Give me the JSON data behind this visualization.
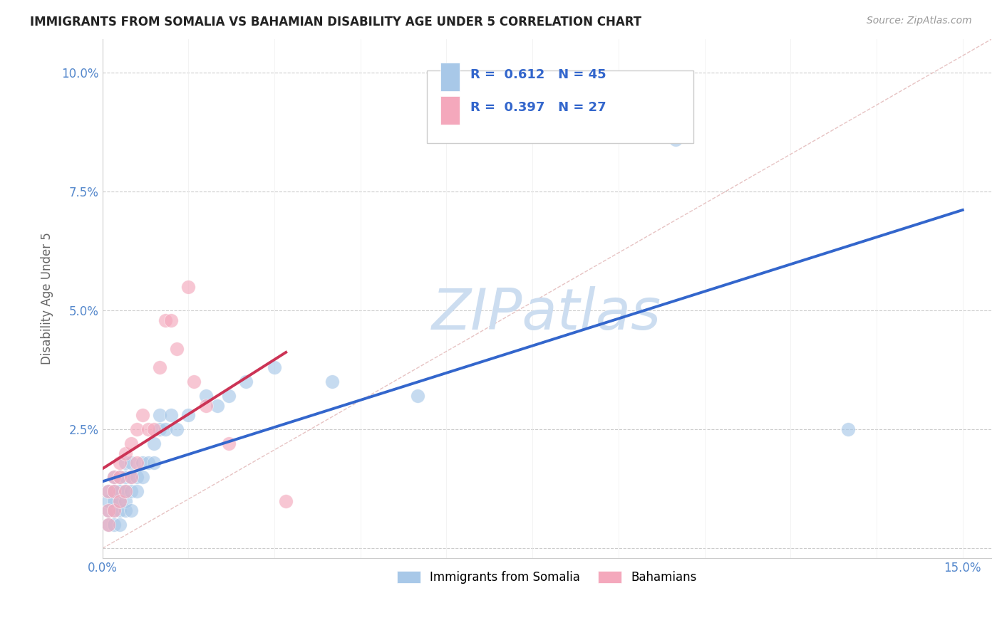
{
  "title": "IMMIGRANTS FROM SOMALIA VS BAHAMIAN DISABILITY AGE UNDER 5 CORRELATION CHART",
  "source": "Source: ZipAtlas.com",
  "ylabel": "Disability Age Under 5",
  "xlim": [
    0.0,
    0.155
  ],
  "ylim": [
    -0.002,
    0.107
  ],
  "xticks": [
    0.0,
    0.015,
    0.03,
    0.045,
    0.06,
    0.075,
    0.09,
    0.105,
    0.12,
    0.135,
    0.15
  ],
  "yticks": [
    0.0,
    0.025,
    0.05,
    0.075,
    0.1
  ],
  "ytick_labels": [
    "",
    "2.5%",
    "5.0%",
    "7.5%",
    "10.0%"
  ],
  "somalia_R": 0.612,
  "somalia_N": 45,
  "bahamian_R": 0.397,
  "bahamian_N": 27,
  "somalia_color": "#a8c8e8",
  "bahamian_color": "#f4a8bc",
  "somalia_line_color": "#3366cc",
  "bahamian_line_color": "#cc3355",
  "watermark": "ZIPatlas",
  "watermark_color": "#ccddf0",
  "somalia_x": [
    0.001,
    0.001,
    0.001,
    0.001,
    0.002,
    0.002,
    0.002,
    0.002,
    0.002,
    0.003,
    0.003,
    0.003,
    0.003,
    0.003,
    0.004,
    0.004,
    0.004,
    0.004,
    0.004,
    0.005,
    0.005,
    0.005,
    0.005,
    0.006,
    0.006,
    0.007,
    0.007,
    0.008,
    0.009,
    0.009,
    0.01,
    0.01,
    0.011,
    0.012,
    0.013,
    0.015,
    0.018,
    0.02,
    0.022,
    0.025,
    0.03,
    0.04,
    0.055,
    0.1,
    0.13
  ],
  "somalia_y": [
    0.005,
    0.008,
    0.01,
    0.012,
    0.005,
    0.008,
    0.01,
    0.012,
    0.015,
    0.005,
    0.008,
    0.01,
    0.012,
    0.015,
    0.008,
    0.01,
    0.012,
    0.015,
    0.018,
    0.008,
    0.012,
    0.015,
    0.018,
    0.012,
    0.015,
    0.015,
    0.018,
    0.018,
    0.018,
    0.022,
    0.025,
    0.028,
    0.025,
    0.028,
    0.025,
    0.028,
    0.032,
    0.03,
    0.032,
    0.035,
    0.038,
    0.035,
    0.032,
    0.086,
    0.025
  ],
  "bahamian_x": [
    0.001,
    0.001,
    0.001,
    0.002,
    0.002,
    0.002,
    0.003,
    0.003,
    0.003,
    0.004,
    0.004,
    0.005,
    0.005,
    0.006,
    0.006,
    0.007,
    0.008,
    0.009,
    0.01,
    0.011,
    0.012,
    0.013,
    0.015,
    0.016,
    0.018,
    0.022,
    0.032
  ],
  "bahamian_y": [
    0.005,
    0.008,
    0.012,
    0.008,
    0.012,
    0.015,
    0.01,
    0.015,
    0.018,
    0.012,
    0.02,
    0.015,
    0.022,
    0.018,
    0.025,
    0.028,
    0.025,
    0.025,
    0.038,
    0.048,
    0.048,
    0.042,
    0.055,
    0.035,
    0.03,
    0.022,
    0.01
  ],
  "somalia_trend_x": [
    0.0,
    0.15
  ],
  "somalia_trend_y": [
    0.0,
    0.08
  ],
  "bahamian_trend_x": [
    0.0,
    0.022
  ],
  "bahamian_trend_y": [
    0.003,
    0.038
  ]
}
